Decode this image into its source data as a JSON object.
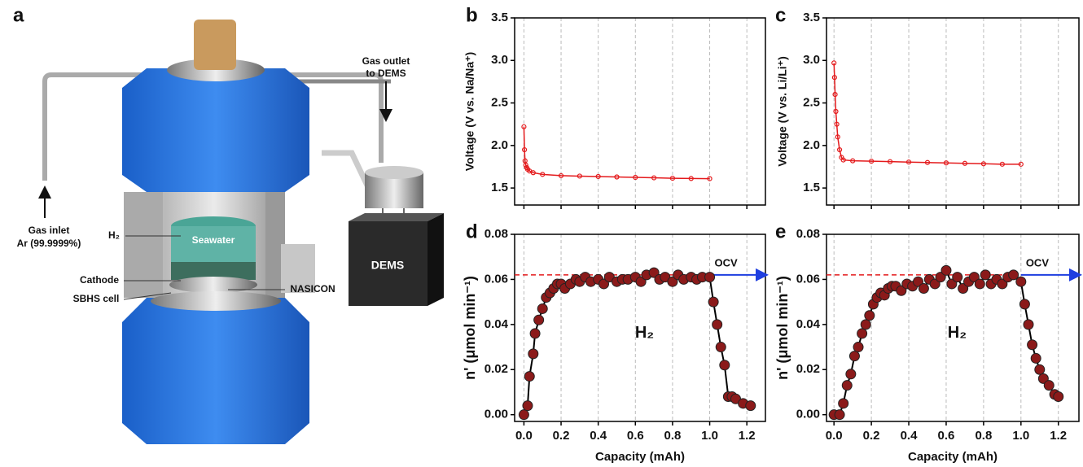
{
  "panel_a": {
    "label": "a",
    "gas_outlet_1": "Gas outlet",
    "gas_outlet_2": "to DEMS",
    "gas_inlet_1": "Gas inlet",
    "gas_inlet_2": "Ar (99.9999%)",
    "h2": "H₂",
    "seawater": "Seawater",
    "cathode": "Cathode",
    "nasicon": "NASICON",
    "sbhs": "SBHS cell",
    "dems": "DEMS"
  },
  "chart_data": [
    {
      "type": "line",
      "label": "b",
      "ylabel": "Voltage (V vs. Na/Na⁺)",
      "x": [
        0,
        0.003,
        0.006,
        0.01,
        0.015,
        0.02,
        0.03,
        0.05,
        0.1,
        0.2,
        0.3,
        0.4,
        0.5,
        0.6,
        0.7,
        0.8,
        0.9,
        1.0
      ],
      "values": [
        2.22,
        1.95,
        1.82,
        1.77,
        1.74,
        1.72,
        1.7,
        1.68,
        1.66,
        1.645,
        1.64,
        1.635,
        1.63,
        1.625,
        1.62,
        1.615,
        1.612,
        1.61
      ],
      "color": "#e41a1c",
      "marker_color": "#e41a1c",
      "xlim": [
        -0.05,
        1.3
      ],
      "xticks": [
        0,
        0.2,
        0.4,
        0.6,
        0.8,
        1.0,
        1.2
      ],
      "ylim": [
        1.3,
        3.5
      ],
      "yticks": [
        1.5,
        2.0,
        2.5,
        3.0,
        3.5
      ],
      "grid": true
    },
    {
      "type": "line",
      "label": "c",
      "ylabel": "Voltage (V vs. Li/Li⁺)",
      "x": [
        0,
        0.003,
        0.006,
        0.01,
        0.015,
        0.02,
        0.03,
        0.04,
        0.05,
        0.1,
        0.2,
        0.3,
        0.4,
        0.5,
        0.6,
        0.7,
        0.8,
        0.9,
        1.0
      ],
      "values": [
        2.97,
        2.8,
        2.6,
        2.4,
        2.25,
        2.1,
        1.95,
        1.86,
        1.83,
        1.82,
        1.815,
        1.81,
        1.805,
        1.8,
        1.795,
        1.79,
        1.785,
        1.78,
        1.78
      ],
      "color": "#e41a1c",
      "marker_color": "#e41a1c",
      "xlim": [
        -0.04,
        1.31
      ],
      "xticks": [
        0,
        0.2,
        0.4,
        0.6,
        0.8,
        1.0,
        1.2
      ],
      "ylim": [
        1.3,
        3.5
      ],
      "yticks": [
        1.5,
        2.0,
        2.5,
        3.0,
        3.5
      ],
      "grid": true
    },
    {
      "type": "line",
      "label": "d",
      "ylabel": "n' (μmol min⁻¹)",
      "xlabel": "Capacity (mAh)",
      "annotation": "H₂",
      "arrow_label": "OCV",
      "arrow_start": 1.0,
      "ref_line": 0.062,
      "x": [
        0,
        0.02,
        0.03,
        0.05,
        0.06,
        0.08,
        0.1,
        0.12,
        0.14,
        0.16,
        0.18,
        0.2,
        0.22,
        0.25,
        0.28,
        0.3,
        0.33,
        0.36,
        0.4,
        0.43,
        0.46,
        0.5,
        0.53,
        0.56,
        0.6,
        0.63,
        0.66,
        0.7,
        0.73,
        0.76,
        0.8,
        0.83,
        0.86,
        0.9,
        0.93,
        0.96,
        1.0,
        1.02,
        1.04,
        1.06,
        1.08,
        1.1,
        1.12,
        1.14,
        1.18,
        1.22
      ],
      "values": [
        0,
        0.004,
        0.017,
        0.027,
        0.036,
        0.042,
        0.047,
        0.052,
        0.054,
        0.056,
        0.058,
        0.058,
        0.056,
        0.058,
        0.06,
        0.059,
        0.061,
        0.059,
        0.06,
        0.058,
        0.061,
        0.059,
        0.06,
        0.06,
        0.061,
        0.059,
        0.062,
        0.063,
        0.06,
        0.061,
        0.059,
        0.062,
        0.06,
        0.061,
        0.06,
        0.061,
        0.061,
        0.05,
        0.04,
        0.03,
        0.022,
        0.008,
        0.008,
        0.007,
        0.005,
        0.004
      ],
      "color": "#000000",
      "marker_color": "#8b1a1a",
      "xlim": [
        -0.05,
        1.3
      ],
      "xticks": [
        {
          "value": 0,
          "label": "0.0"
        },
        {
          "value": 0.2,
          "label": "0.2"
        },
        {
          "value": 0.4,
          "label": "0.4"
        },
        {
          "value": 0.6,
          "label": "0.6"
        },
        {
          "value": 0.8,
          "label": "0.8"
        },
        {
          "value": 1.0,
          "label": "1.0"
        },
        {
          "value": 1.2,
          "label": "1.2"
        }
      ],
      "ylim": [
        -0.003,
        0.08
      ],
      "yticks": [
        {
          "value": 0,
          "label": "0.00"
        },
        {
          "value": 0.02,
          "label": "0.02"
        },
        {
          "value": 0.04,
          "label": "0.04"
        },
        {
          "value": 0.06,
          "label": "0.06"
        },
        {
          "value": 0.08,
          "label": "0.08"
        }
      ],
      "grid": true
    },
    {
      "type": "line",
      "label": "e",
      "ylabel": "n' (μmol min⁻¹)",
      "xlabel": "Capacity (mAh)",
      "annotation": "H₂",
      "arrow_label": "OCV",
      "arrow_start": 1.0,
      "ref_line": 0.062,
      "x": [
        0,
        0.03,
        0.05,
        0.07,
        0.09,
        0.11,
        0.13,
        0.15,
        0.17,
        0.19,
        0.21,
        0.23,
        0.25,
        0.27,
        0.29,
        0.31,
        0.33,
        0.36,
        0.39,
        0.42,
        0.45,
        0.48,
        0.51,
        0.54,
        0.57,
        0.6,
        0.63,
        0.66,
        0.69,
        0.72,
        0.75,
        0.78,
        0.81,
        0.84,
        0.87,
        0.9,
        0.93,
        0.96,
        1.0,
        1.02,
        1.04,
        1.06,
        1.08,
        1.1,
        1.12,
        1.15,
        1.18,
        1.2
      ],
      "values": [
        0,
        0,
        0.005,
        0.013,
        0.018,
        0.026,
        0.03,
        0.036,
        0.04,
        0.044,
        0.049,
        0.052,
        0.054,
        0.053,
        0.056,
        0.057,
        0.057,
        0.055,
        0.058,
        0.057,
        0.059,
        0.056,
        0.06,
        0.058,
        0.061,
        0.064,
        0.058,
        0.061,
        0.056,
        0.059,
        0.061,
        0.058,
        0.062,
        0.058,
        0.06,
        0.058,
        0.061,
        0.062,
        0.059,
        0.049,
        0.04,
        0.031,
        0.025,
        0.02,
        0.016,
        0.013,
        0.009,
        0.008
      ],
      "color": "#000000",
      "marker_color": "#8b1a1a",
      "xlim": [
        -0.04,
        1.31
      ],
      "xticks": [
        {
          "value": 0,
          "label": "0.0"
        },
        {
          "value": 0.2,
          "label": "0.2"
        },
        {
          "value": 0.4,
          "label": "0.4"
        },
        {
          "value": 0.6,
          "label": "0.6"
        },
        {
          "value": 0.8,
          "label": "0.8"
        },
        {
          "value": 1.0,
          "label": "1.0"
        },
        {
          "value": 1.2,
          "label": "1.2"
        }
      ],
      "ylim": [
        -0.003,
        0.08
      ],
      "yticks": [
        {
          "value": 0,
          "label": "0.00"
        },
        {
          "value": 0.02,
          "label": "0.02"
        },
        {
          "value": 0.04,
          "label": "0.04"
        },
        {
          "value": 0.06,
          "label": "0.06"
        },
        {
          "value": 0.08,
          "label": "0.08"
        }
      ],
      "grid": true
    }
  ]
}
